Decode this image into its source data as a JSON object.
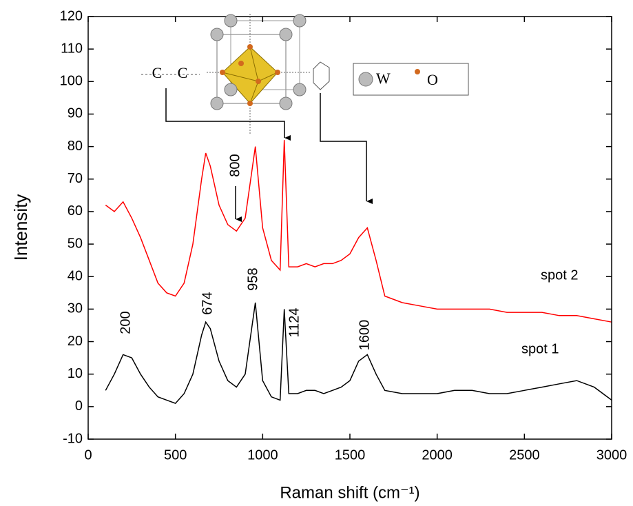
{
  "chart_data": {
    "type": "line",
    "xlabel": "Raman shift (cm⁻¹)",
    "ylabel": "Intensity",
    "x": [
      100,
      150,
      200,
      250,
      300,
      350,
      400,
      450,
      500,
      550,
      600,
      650,
      674,
      700,
      750,
      800,
      850,
      900,
      958,
      1000,
      1050,
      1100,
      1124,
      1150,
      1200,
      1250,
      1300,
      1350,
      1400,
      1450,
      1500,
      1550,
      1600,
      1650,
      1700,
      1800,
      1900,
      2000,
      2100,
      2200,
      2300,
      2400,
      2500,
      2600,
      2700,
      2800,
      2900,
      3000
    ],
    "series": [
      {
        "name": "spot 2",
        "color": "#ff0000",
        "values": [
          62,
          60,
          63,
          58,
          52,
          45,
          38,
          35,
          34,
          38,
          50,
          70,
          78,
          74,
          62,
          56,
          54,
          58,
          80,
          55,
          45,
          42,
          82,
          43,
          43,
          44,
          43,
          44,
          44,
          45,
          47,
          52,
          55,
          45,
          34,
          32,
          31,
          30,
          30,
          30,
          30,
          29,
          29,
          29,
          28,
          28,
          27,
          26
        ]
      },
      {
        "name": "spot 1",
        "color": "#000000",
        "values": [
          5,
          10,
          16,
          15,
          10,
          6,
          3,
          2,
          1,
          4,
          10,
          22,
          26,
          24,
          14,
          8,
          6,
          10,
          32,
          8,
          3,
          2,
          30,
          4,
          4,
          5,
          5,
          4,
          5,
          6,
          8,
          14,
          16,
          10,
          5,
          4,
          4,
          4,
          5,
          5,
          4,
          4,
          5,
          6,
          7,
          8,
          6,
          2
        ]
      }
    ],
    "peak_labels": [
      "200",
      "674",
      "958",
      "1124",
      "1600",
      "800"
    ],
    "inset": {
      "bond_atoms": [
        "C",
        "C"
      ],
      "legend": [
        "W",
        "O"
      ]
    },
    "xlim": [
      0,
      3000
    ],
    "xticks": [
      0,
      500,
      1000,
      1500,
      2000,
      2500,
      3000
    ],
    "ylim": [
      -10,
      120
    ],
    "yticks": [
      -10,
      0,
      10,
      20,
      30,
      40,
      50,
      60,
      70,
      80,
      90,
      100,
      110,
      120
    ]
  }
}
